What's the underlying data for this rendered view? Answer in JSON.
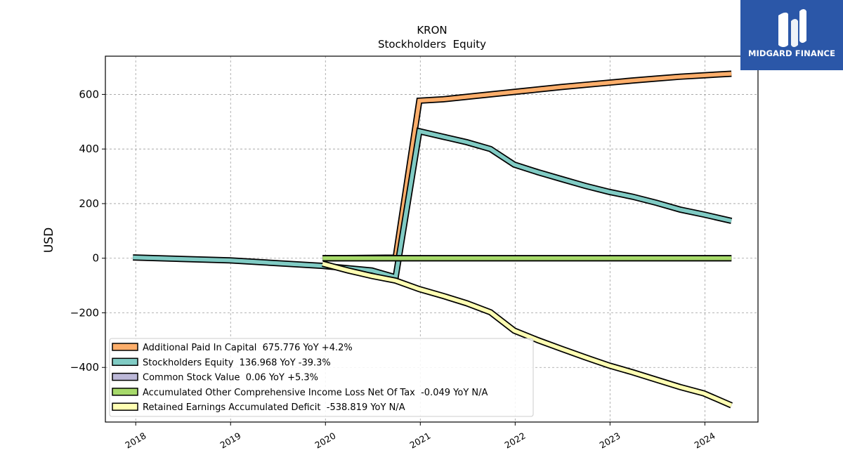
{
  "chart_data": {
    "type": "line",
    "title": "KRON",
    "subtitle": "Stockholders  Equity",
    "ylabel": "USD",
    "xlabel": "",
    "xlim": [
      2017.68,
      2024.56
    ],
    "ylim": [
      -600,
      740
    ],
    "x_ticks": [
      "2018",
      "2019",
      "2020",
      "2021",
      "2022",
      "2023",
      "2024"
    ],
    "y_ticks": [
      600,
      400,
      200,
      0,
      -200,
      -400
    ],
    "y_tick_labels": [
      "600",
      "400",
      "200",
      "0",
      "−200",
      "−400"
    ],
    "grid": true,
    "legend_position": "lower-left",
    "series": [
      {
        "name": "Additional Paid In Capital  675.776 YoY +4.2%",
        "color": "#fdae6b",
        "points": [
          [
            2019.97,
            0.0
          ],
          [
            2020.74,
            2.0
          ],
          [
            2020.99,
            577
          ],
          [
            2021.24,
            582
          ],
          [
            2021.49,
            591
          ],
          [
            2021.74,
            600
          ],
          [
            2021.99,
            609
          ],
          [
            2022.24,
            618
          ],
          [
            2022.49,
            627
          ],
          [
            2022.74,
            635
          ],
          [
            2022.99,
            643
          ],
          [
            2023.24,
            651
          ],
          [
            2023.49,
            658
          ],
          [
            2023.74,
            665
          ],
          [
            2023.99,
            670
          ],
          [
            2024.28,
            675.776
          ]
        ]
      },
      {
        "name": "Stockholders Equity  136.968 YoY -39.3%",
        "color": "#80cbc4",
        "points": [
          [
            2017.97,
            3.0
          ],
          [
            2018.99,
            -8
          ],
          [
            2019.97,
            -28
          ],
          [
            2020.49,
            -45
          ],
          [
            2020.74,
            -70
          ],
          [
            2020.99,
            465
          ],
          [
            2021.24,
            445
          ],
          [
            2021.49,
            425
          ],
          [
            2021.74,
            400
          ],
          [
            2021.99,
            343
          ],
          [
            2022.24,
            315
          ],
          [
            2022.49,
            290
          ],
          [
            2022.74,
            265
          ],
          [
            2022.99,
            243
          ],
          [
            2023.24,
            225
          ],
          [
            2023.49,
            203
          ],
          [
            2023.74,
            178
          ],
          [
            2023.99,
            160
          ],
          [
            2024.28,
            136.968
          ]
        ]
      },
      {
        "name": "Common Stock Value  0.06 YoY +5.3%",
        "color": "#bcb8d8",
        "points": [
          [
            2019.97,
            0.05
          ],
          [
            2020.99,
            0.057
          ],
          [
            2021.99,
            0.057
          ],
          [
            2022.99,
            0.058
          ],
          [
            2023.99,
            0.059
          ],
          [
            2024.28,
            0.06
          ]
        ]
      },
      {
        "name": "Accumulated Other Comprehensive Income Loss Net Of Tax  -0.049 YoY N/A",
        "color": "#a6d96a",
        "points": [
          [
            2019.97,
            0.0
          ],
          [
            2020.99,
            0.0
          ],
          [
            2021.99,
            0.0
          ],
          [
            2022.99,
            -0.02
          ],
          [
            2023.99,
            -0.04
          ],
          [
            2024.28,
            -0.049
          ]
        ]
      },
      {
        "name": "Retained Earnings Accumulated Deficit  -538.819 YoY N/A",
        "color": "#ffffb3",
        "points": [
          [
            2019.97,
            -20
          ],
          [
            2020.24,
            -45
          ],
          [
            2020.49,
            -65
          ],
          [
            2020.74,
            -82
          ],
          [
            2020.99,
            -113
          ],
          [
            2021.24,
            -138
          ],
          [
            2021.49,
            -165
          ],
          [
            2021.74,
            -198
          ],
          [
            2021.99,
            -265
          ],
          [
            2022.24,
            -300
          ],
          [
            2022.49,
            -332
          ],
          [
            2022.74,
            -363
          ],
          [
            2022.99,
            -393
          ],
          [
            2023.24,
            -418
          ],
          [
            2023.49,
            -445
          ],
          [
            2023.74,
            -472
          ],
          [
            2023.99,
            -495
          ],
          [
            2024.28,
            -538.819
          ]
        ]
      }
    ]
  },
  "logo": {
    "text": "MIDGARD FINANCE",
    "background": "#2b57a8"
  }
}
